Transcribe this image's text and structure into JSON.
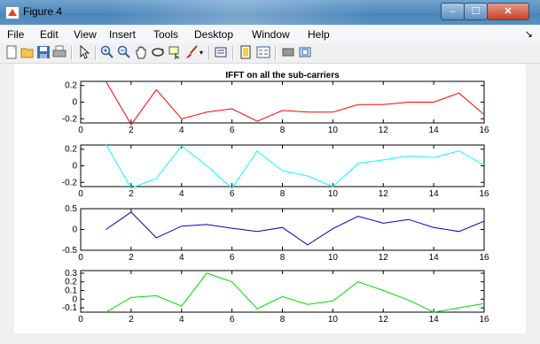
{
  "window": {
    "title": "Figure 4",
    "minimize": "–",
    "maximize": "☐",
    "close": "✕"
  },
  "menu": [
    "File",
    "Edit",
    "View",
    "Insert",
    "Tools",
    "Desktop",
    "Window",
    "Help"
  ],
  "menu_arrow": "↘",
  "toolbar": {
    "icons": [
      "new-figure-icon",
      "open-file-icon",
      "save-icon",
      "print-icon",
      "pointer-icon",
      "zoom-in-icon",
      "zoom-out-icon",
      "pan-icon",
      "rotate-3d-icon",
      "data-cursor-icon",
      "brush-icon",
      "link-plot-icon",
      "colorbar-icon",
      "legend-icon",
      "hide-plot-tools-icon",
      "show-plot-tools-icon"
    ]
  },
  "chart_data": [
    {
      "type": "line",
      "title": "IFFT on all the sub-carriers",
      "color": "#ff0000",
      "x": [
        1,
        2,
        3,
        4,
        5,
        6,
        7,
        8,
        9,
        10,
        11,
        12,
        13,
        14,
        15,
        16
      ],
      "y": [
        0.25,
        -0.27,
        0.15,
        -0.2,
        -0.12,
        -0.08,
        -0.23,
        -0.1,
        -0.12,
        -0.12,
        -0.03,
        -0.03,
        0.0,
        0.0,
        0.11,
        -0.15
      ],
      "xlim": [
        0,
        16
      ],
      "ylim": [
        -0.25,
        0.25
      ],
      "xticks": [
        0,
        2,
        4,
        6,
        8,
        10,
        12,
        14,
        16
      ],
      "xtick_labels": [
        "0",
        "2",
        "4",
        "6",
        "8",
        "10",
        "12",
        "14",
        "16"
      ],
      "yticks": [
        0.2,
        0,
        -0.2
      ],
      "ytick_labels": [
        "0.2",
        "0",
        "-0.2"
      ]
    },
    {
      "type": "line",
      "title": "",
      "color": "#00ffff",
      "x": [
        1,
        2,
        3,
        4,
        5,
        6,
        7,
        8,
        9,
        10,
        11,
        12,
        13,
        14,
        15,
        16
      ],
      "y": [
        0.26,
        -0.27,
        -0.15,
        0.24,
        0.0,
        -0.27,
        0.18,
        -0.06,
        -0.12,
        -0.25,
        0.03,
        0.07,
        0.12,
        0.1,
        0.18,
        0.01
      ],
      "xlim": [
        0,
        16
      ],
      "ylim": [
        -0.25,
        0.25
      ],
      "xticks": [
        0,
        2,
        4,
        6,
        8,
        10,
        12,
        14,
        16
      ],
      "xtick_labels": [
        "0",
        "2",
        "4",
        "6",
        "8",
        "10",
        "12",
        "14",
        "16"
      ],
      "yticks": [
        0.2,
        0,
        -0.2
      ],
      "ytick_labels": [
        "0.2",
        "0",
        "-0.2"
      ]
    },
    {
      "type": "line",
      "title": "",
      "color": "#0000cc",
      "x": [
        1,
        2,
        3,
        4,
        5,
        6,
        7,
        8,
        9,
        10,
        11,
        12,
        13,
        14,
        15,
        16
      ],
      "y": [
        0.0,
        0.42,
        -0.2,
        0.08,
        0.12,
        0.03,
        -0.05,
        0.05,
        -0.37,
        0.02,
        0.32,
        0.15,
        0.24,
        0.05,
        -0.05,
        0.2
      ],
      "xlim": [
        0,
        16
      ],
      "ylim": [
        -0.5,
        0.5
      ],
      "xticks": [
        0,
        2,
        4,
        6,
        8,
        10,
        12,
        14,
        16
      ],
      "xtick_labels": [
        "0",
        "2",
        "4",
        "6",
        "8",
        "10",
        "12",
        "14",
        "16"
      ],
      "yticks": [
        0.5,
        0,
        -0.5
      ],
      "ytick_labels": [
        "0.5",
        "0",
        "-0.5"
      ]
    },
    {
      "type": "line",
      "title": "",
      "color": "#00dd00",
      "x": [
        1,
        2,
        3,
        4,
        5,
        6,
        7,
        8,
        9,
        10,
        11,
        12,
        13,
        14,
        15,
        16
      ],
      "y": [
        -0.15,
        0.02,
        0.04,
        -0.08,
        0.3,
        0.2,
        -0.11,
        0.03,
        -0.06,
        -0.02,
        0.2,
        0.1,
        -0.01,
        -0.15,
        -0.1,
        -0.05
      ],
      "xlim": [
        0,
        16
      ],
      "ylim": [
        -0.15,
        0.33
      ],
      "xticks": [
        0,
        2,
        4,
        6,
        8,
        10,
        12,
        14,
        16
      ],
      "xtick_labels": [
        "0",
        "2",
        "4",
        "6",
        "8",
        "10",
        "12",
        "14",
        "16"
      ],
      "yticks": [
        0.3,
        0.2,
        0.1,
        0,
        -0.1
      ],
      "ytick_labels": [
        "0.3",
        "0.2",
        "0.1",
        "0",
        "-0.1"
      ]
    }
  ]
}
